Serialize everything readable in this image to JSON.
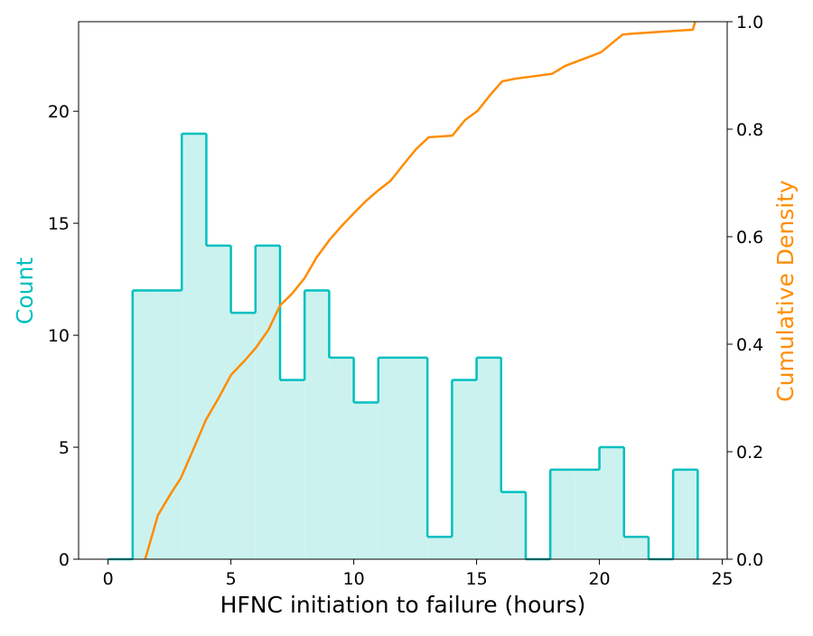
{
  "chart_data": {
    "type": "histogram",
    "x_label": "HFNC initiation to failure (hours)",
    "y_label": "Count",
    "y2_label": "Cumulative Density",
    "bins": [
      0,
      1,
      2,
      3,
      4,
      5,
      6,
      7,
      8,
      9,
      10,
      11,
      12,
      13,
      14,
      15,
      16,
      17,
      18,
      19,
      20,
      21,
      22,
      23,
      24
    ],
    "values": [
      0,
      12,
      12,
      19,
      14,
      11,
      14,
      8,
      12,
      9,
      7,
      9,
      9,
      1,
      8,
      9,
      3,
      0,
      4,
      4,
      5,
      1,
      0,
      4
    ],
    "color": "#00bfbf",
    "fill_color": "#ccf2ef",
    "xlim": [
      -1.2,
      25.2
    ],
    "xticks": [
      0,
      5,
      10,
      15,
      20,
      25
    ],
    "ylim": [
      0,
      24
    ],
    "yticks": [
      0,
      5,
      10,
      15,
      20
    ],
    "y2lim": [
      0,
      1
    ],
    "y2ticks": [
      {
        "value": 0,
        "label": "0.0"
      },
      0.2,
      0.4,
      0.6,
      0.8,
      {
        "value": 1,
        "label": "1.0"
      }
    ],
    "cdf": {
      "axis": "y2",
      "color": "#ff8c00",
      "x": [
        1.51,
        2.03,
        2.58,
        2.95,
        3.43,
        3.98,
        4.5,
        5.01,
        5.53,
        6.01,
        6.53,
        7.0,
        7.49,
        8.0,
        8.48,
        9.03,
        9.51,
        10.03,
        10.51,
        11.02,
        11.5,
        12.02,
        12.54,
        13.05,
        14.01,
        14.53,
        15.04,
        15.56,
        16.04,
        16.59,
        18.07,
        18.62,
        19.54,
        20.06,
        20.94,
        21.39,
        23.8,
        23.9
      ],
      "values": [
        0,
        0.082,
        0.124,
        0.15,
        0.2,
        0.259,
        0.3,
        0.343,
        0.368,
        0.393,
        0.427,
        0.472,
        0.494,
        0.523,
        0.561,
        0.595,
        0.62,
        0.645,
        0.667,
        0.687,
        0.704,
        0.734,
        0.763,
        0.785,
        0.788,
        0.817,
        0.834,
        0.864,
        0.889,
        0.894,
        0.903,
        0.918,
        0.934,
        0.943,
        0.976,
        0.978,
        0.985,
        1.0
      ]
    }
  }
}
